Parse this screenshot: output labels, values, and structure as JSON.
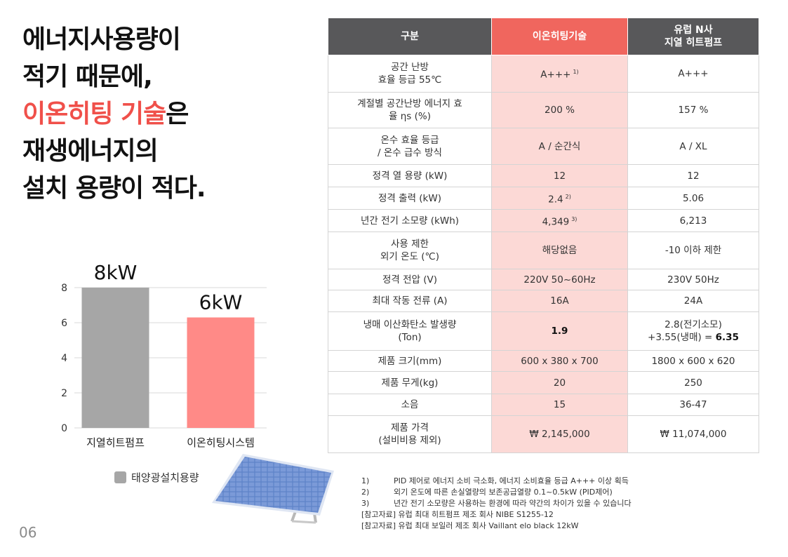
{
  "headline": {
    "line1": "에너지사용량이",
    "line2": "적기 때문에,",
    "line3_accent": "이온히팅 기술",
    "line3_rest": "은",
    "line4": "재생에너지의",
    "line5": "설치 용량이 적다."
  },
  "page_number": "06",
  "chart_data": {
    "type": "bar",
    "categories": [
      "지열히트펌프",
      "이온히팅시스템"
    ],
    "values": [
      8,
      6.3
    ],
    "value_labels": [
      "8kW",
      "6kW"
    ],
    "colors": [
      "#a6a6a6",
      "#ff8a87"
    ],
    "ylim": [
      0,
      8
    ],
    "yticks": [
      0,
      2,
      4,
      6,
      8
    ],
    "grid": true,
    "legend": "bottom",
    "series": [
      {
        "name": "태양광설치용량",
        "values": [
          8,
          6.3
        ]
      }
    ]
  },
  "legend": {
    "label": "태양광설치용량",
    "color": "#a6a6a6"
  },
  "table": {
    "headers": [
      "구분",
      "이온히팅기술",
      "유럽 N사\n지열 히트펌프"
    ],
    "rows": [
      {
        "label": "공간 난방\n효율 등급 55℃",
        "c1": "A+++",
        "c1_note": "1)",
        "c2": "A+++"
      },
      {
        "label": "계절별 공간난방 에너지 효\n율 ηs (%)",
        "c1": "200 %",
        "c1_note": "",
        "c2": "157 %"
      },
      {
        "label": "온수 효율 등급\n/ 온수 급수 방식",
        "c1": "A / 순간식",
        "c1_note": "",
        "c2": "A / XL"
      },
      {
        "label": "정격 열 용량 (kW)",
        "c1": "12",
        "c1_note": "",
        "c2": "12"
      },
      {
        "label": "정격 출력 (kW)",
        "c1": "2.4",
        "c1_note": "2)",
        "c2": "5.06"
      },
      {
        "label": "년간 전기 소모량 (kWh)",
        "c1": "4,349",
        "c1_note": "3)",
        "c2": "6,213"
      },
      {
        "label": "사용 제한\n외기 온도 (℃)",
        "c1": "해당없음",
        "c1_note": "",
        "c2": "-10 이하 제한"
      },
      {
        "label": "정격 전압 (V)",
        "c1": "220V 50~60Hz",
        "c1_note": "",
        "c2": "230V 50Hz"
      },
      {
        "label": "최대 작동 전류 (A)",
        "c1": "16A",
        "c1_note": "",
        "c2": "24A"
      },
      {
        "label": "냉매 이산화탄소 발생량\n(Ton)",
        "c1": "1.9",
        "c1_note": "",
        "c2_line1": "2.8(전기소모)",
        "c2_line2_pre": "+3.55(냉매) = ",
        "c2_line2_bold": "6.35"
      },
      {
        "label": "제품 크기(mm)",
        "c1": "600 x 380 x 700",
        "c1_note": "",
        "c2": "1800 x 600 x 620"
      },
      {
        "label": "제품 무게(kg)",
        "c1": "20",
        "c1_note": "",
        "c2": "250"
      },
      {
        "label": "소음",
        "c1": "15",
        "c1_note": "",
        "c2": "36-47"
      },
      {
        "label": "제품 가격\n(설비비용 제외)",
        "c1": "₩ 2,145,000",
        "c1_note": "",
        "c2": "₩ 11,074,000"
      }
    ]
  },
  "notes": [
    {
      "num": "1)",
      "text": "PID 제어로 에너지 소비 극소화, 에너지 소비효율 등급 A+++ 이상 획득"
    },
    {
      "num": "2)",
      "text": "외기 온도에 따른 손실열량의 보존공급열량 0.1~0.5kW (PID제어)"
    },
    {
      "num": "3)",
      "text": "년간 전기 소모량은 사용하는 환경에 따라 약간의 차이가 있을 수 있습니다"
    }
  ],
  "references": [
    "[참고자료] 유럽 최대 히트펌프 제조 회사 NIBE S1255-12",
    "[참고자료] 유럽 최대 보일러 제조 회사 Vaillant elo black 12kW"
  ]
}
